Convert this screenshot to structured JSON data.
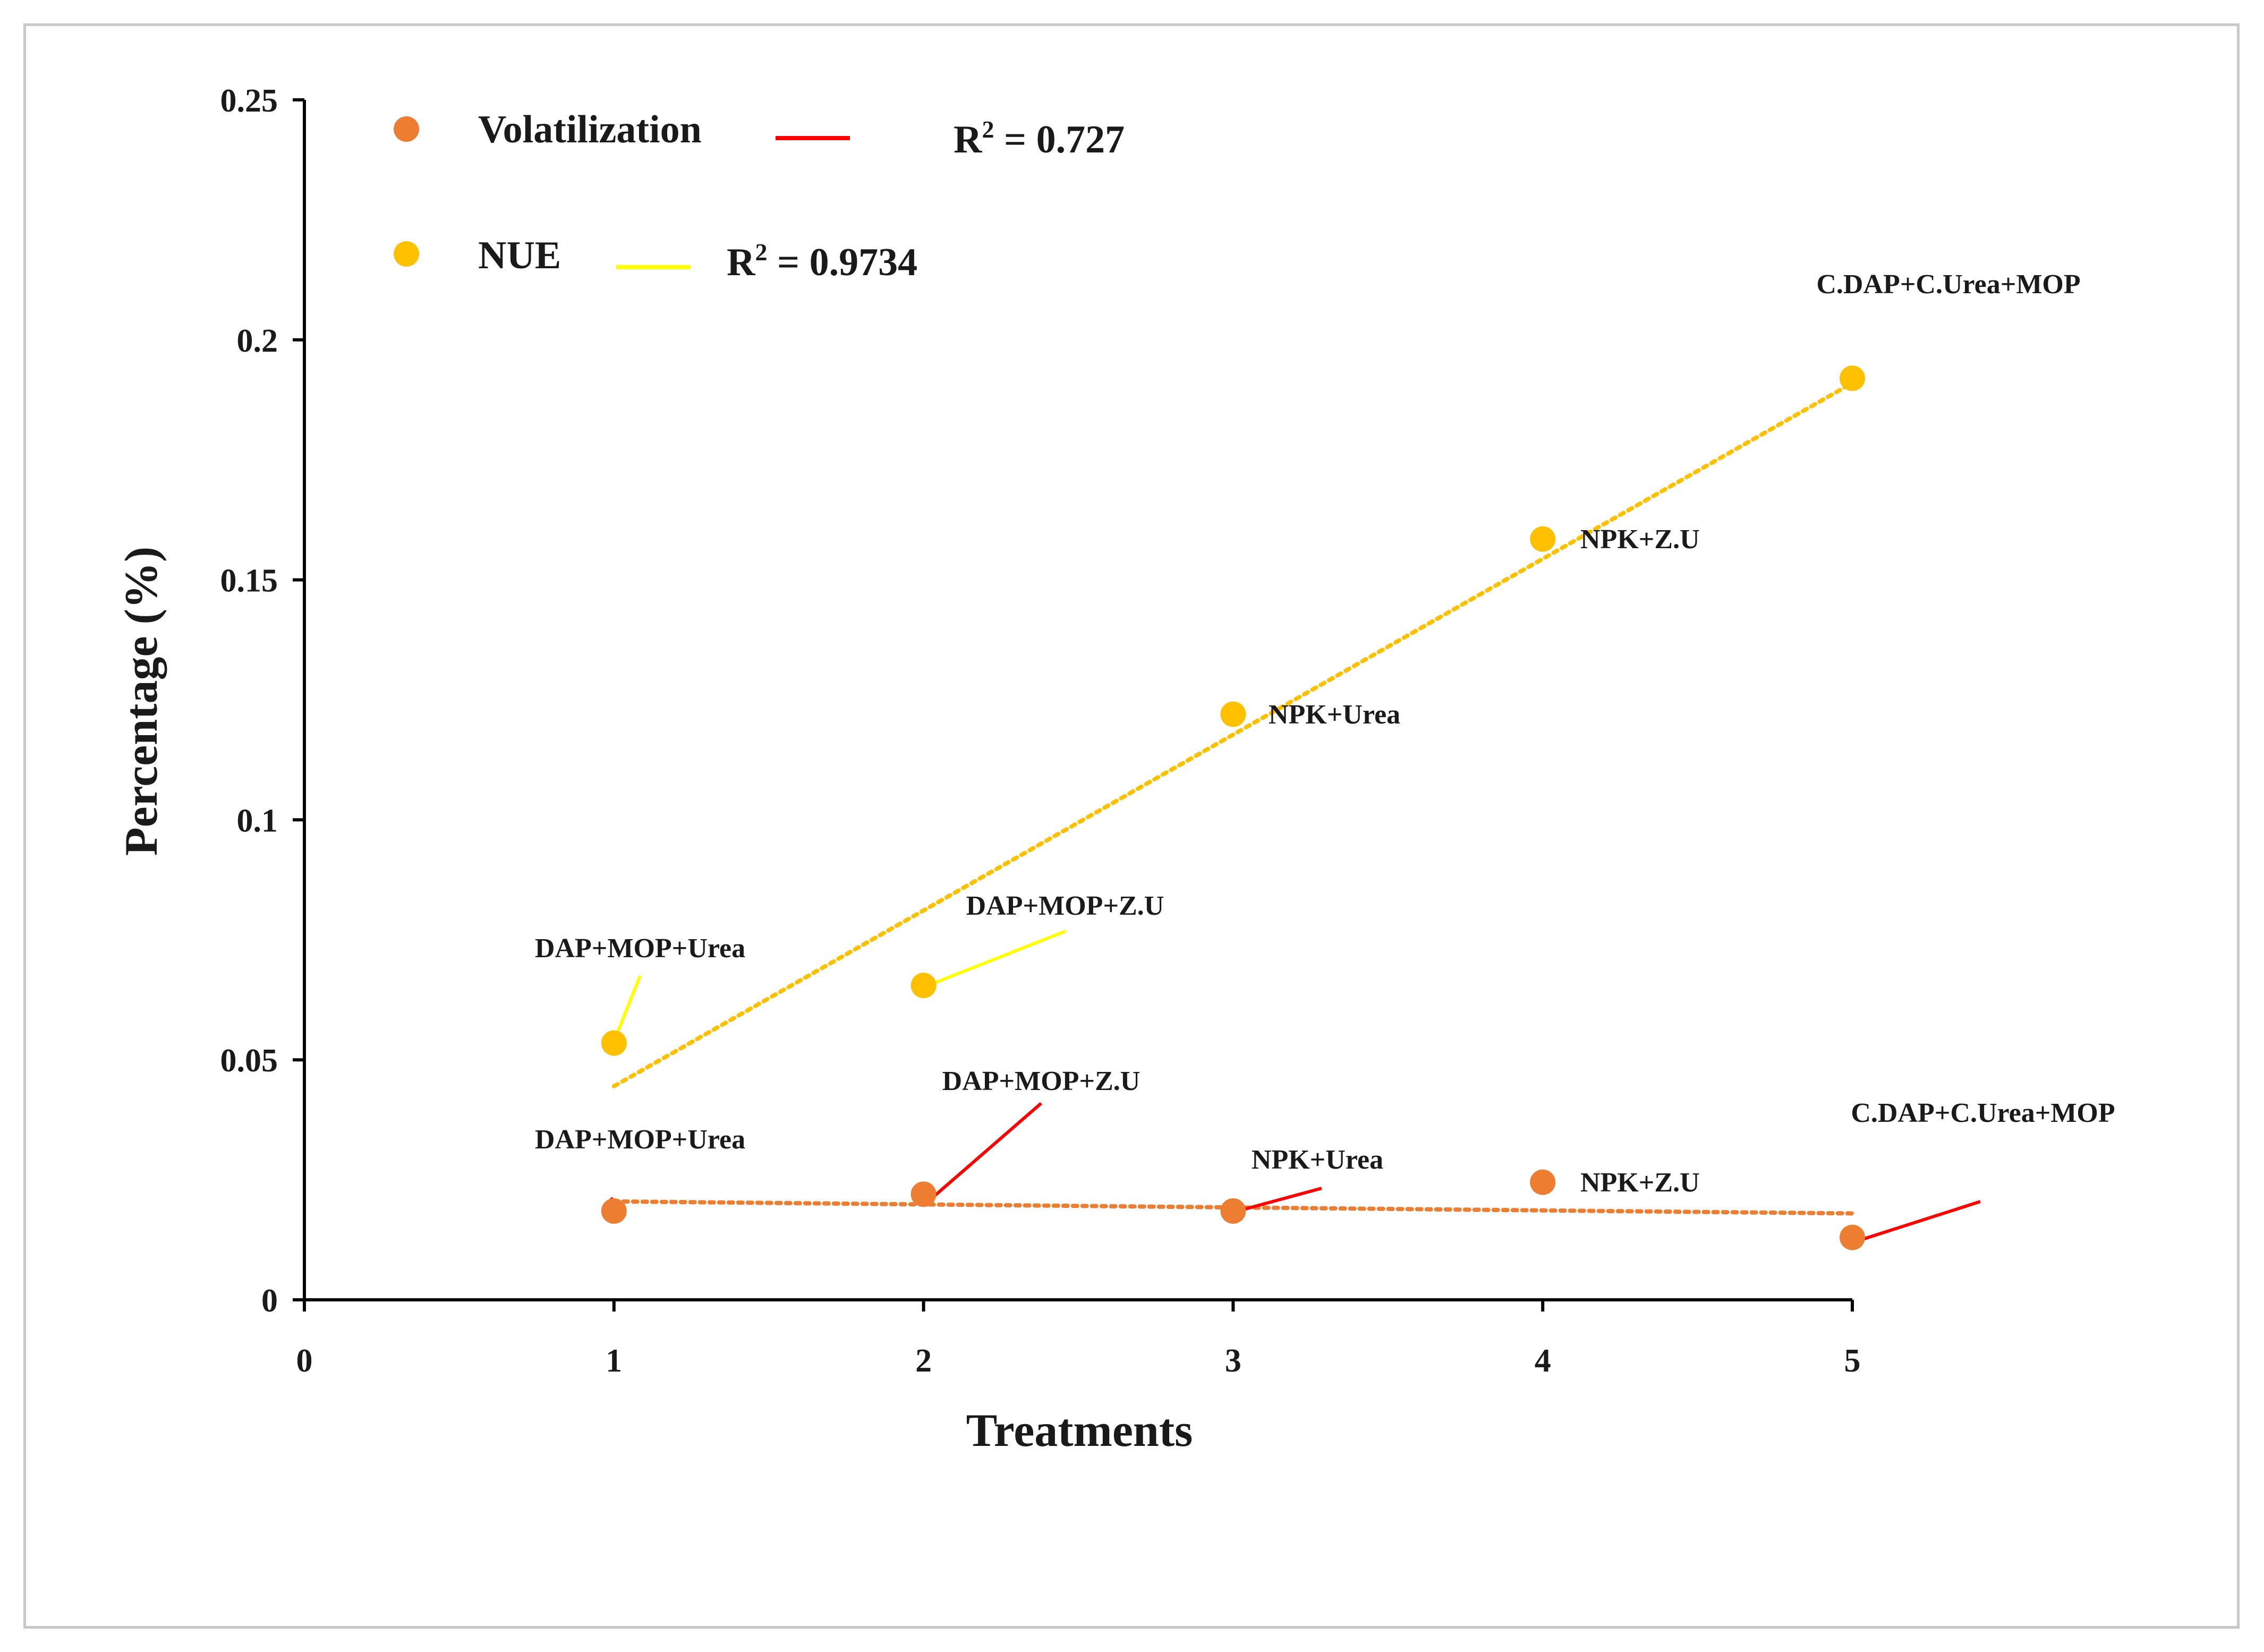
{
  "chart_data": {
    "type": "scatter",
    "xlabel": "Treatments",
    "ylabel": "Percentage (%)",
    "xlim": [
      0,
      5
    ],
    "ylim": [
      0,
      0.25
    ],
    "xticks": [
      "0",
      "1",
      "2",
      "3",
      "4",
      "5"
    ],
    "yticks": [
      "0",
      "0.05",
      "0.1",
      "0.15",
      "0.2",
      "0.25"
    ],
    "legend_position": "top-left",
    "series": [
      {
        "name": "Volatilization",
        "color": "#ED7D31",
        "trend_color": "#FF0000",
        "trendline_style": "dotted",
        "r2_text": "R² = 0.727",
        "r2_base": "R",
        "r2_sup": "2",
        "r2_value": " = 0.727",
        "x": [
          1,
          2,
          3,
          4,
          5
        ],
        "y": [
          0.0185,
          0.022,
          0.0185,
          0.0245,
          0.013
        ],
        "trendline": {
          "x": [
            1,
            5
          ],
          "y": [
            0.0205,
            0.018
          ]
        },
        "point_labels": [
          "DAP+MOP+Urea",
          "DAP+MOP+Z.U",
          "NPK+Urea",
          "NPK+Z.U",
          "C.DAP+C.Urea+MOP"
        ]
      },
      {
        "name": "NUE",
        "color": "#FFC000",
        "trend_color": "#FFFF00",
        "trendline_style": "dotted",
        "r2_text": "R² = 0.9734",
        "r2_base": "R",
        "r2_sup": "2",
        "r2_value": " = 0.9734",
        "x": [
          1,
          2,
          3,
          4,
          5
        ],
        "y": [
          0.0535,
          0.0655,
          0.122,
          0.1585,
          0.192
        ],
        "trendline": {
          "x": [
            1,
            5
          ],
          "y": [
            0.0445,
            0.191
          ]
        },
        "point_labels": [
          "DAP+MOP+Urea",
          "DAP+MOP+Z.U",
          "NPK+Urea",
          "NPK+Z.U",
          "C.DAP+C.Urea+MOP"
        ]
      }
    ]
  }
}
